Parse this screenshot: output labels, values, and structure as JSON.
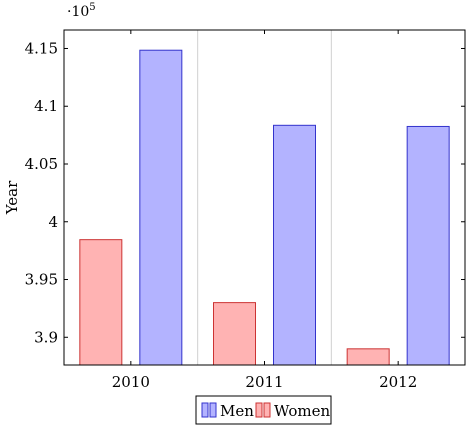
{
  "chart_data": {
    "type": "bar",
    "categories": [
      "2010",
      "2011",
      "2012"
    ],
    "series": [
      {
        "name": "Men",
        "values": [
          414850,
          408350,
          408250
        ],
        "fill": "#b3b3ff",
        "stroke": "#3333cc"
      },
      {
        "name": "Women",
        "values": [
          398450,
          393000,
          389000
        ],
        "fill": "#ffb3b3",
        "stroke": "#cc3333"
      }
    ],
    "bar_order": [
      "Women",
      "Men"
    ],
    "title": "",
    "xlabel": "",
    "ylabel": "Year",
    "ylim": [
      387600,
      416600
    ],
    "yticks": [
      390000,
      395000,
      400000,
      405000,
      410000,
      415000
    ],
    "ytick_labels": [
      "3.9",
      "3.95",
      "4",
      "4.05",
      "4.1",
      "4.15"
    ],
    "y_multiplier": "·10",
    "y_multiplier_exponent": "5",
    "grid": "vertical",
    "legend_position": "bottom-center"
  }
}
